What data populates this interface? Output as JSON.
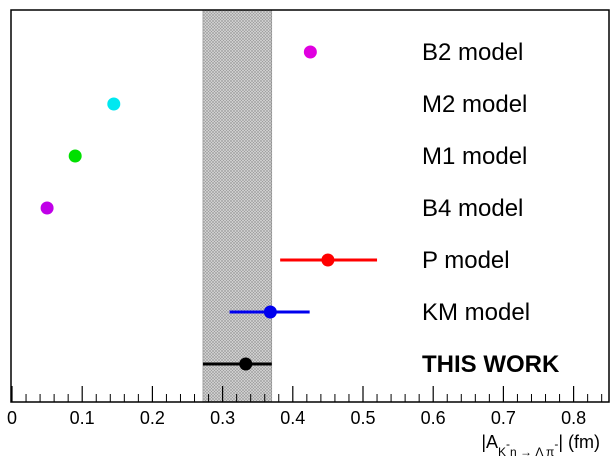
{
  "chart_data": {
    "type": "scatter",
    "orientation": "horizontal-rows",
    "xlabel": {
      "prefix": "|A",
      "subscript": "K",
      "sup": "-",
      "subscript_rest": "n → Λ π",
      "sup2": "-",
      "suffix": "| (fm)"
    },
    "xlim": [
      0,
      0.85
    ],
    "xticks": [
      "0",
      "0.1",
      "0.2",
      "0.3",
      "0.4",
      "0.5",
      "0.6",
      "0.7",
      "0.8"
    ],
    "xtick_values": [
      0,
      0.1,
      0.2,
      0.3,
      0.4,
      0.5,
      0.6,
      0.7,
      0.8
    ],
    "band": {
      "from": 0.272,
      "to": 0.37,
      "fill": "hatched-gray"
    },
    "points": [
      {
        "label": "B2 model",
        "x": 0.425,
        "xerr_low": null,
        "xerr_high": null,
        "color": "#e000e0",
        "bold": false
      },
      {
        "label": "M2 model",
        "x": 0.145,
        "xerr_low": null,
        "xerr_high": null,
        "color": "#00e8f0",
        "bold": false
      },
      {
        "label": "M1 model",
        "x": 0.09,
        "xerr_low": null,
        "xerr_high": null,
        "color": "#00e000",
        "bold": false
      },
      {
        "label": "B4 model",
        "x": 0.05,
        "xerr_low": null,
        "xerr_high": null,
        "color": "#c000e8",
        "bold": false
      },
      {
        "label": "P model",
        "x": 0.45,
        "xerr_low": 0.382,
        "xerr_high": 0.52,
        "color": "#ff0000",
        "bold": false
      },
      {
        "label": "KM model",
        "x": 0.368,
        "xerr_low": 0.31,
        "xerr_high": 0.424,
        "color": "#0000ee",
        "bold": false
      },
      {
        "label": "THIS WORK",
        "x": 0.333,
        "xerr_low": 0.272,
        "xerr_high": 0.37,
        "color": "#000000",
        "bold": true
      }
    ]
  }
}
